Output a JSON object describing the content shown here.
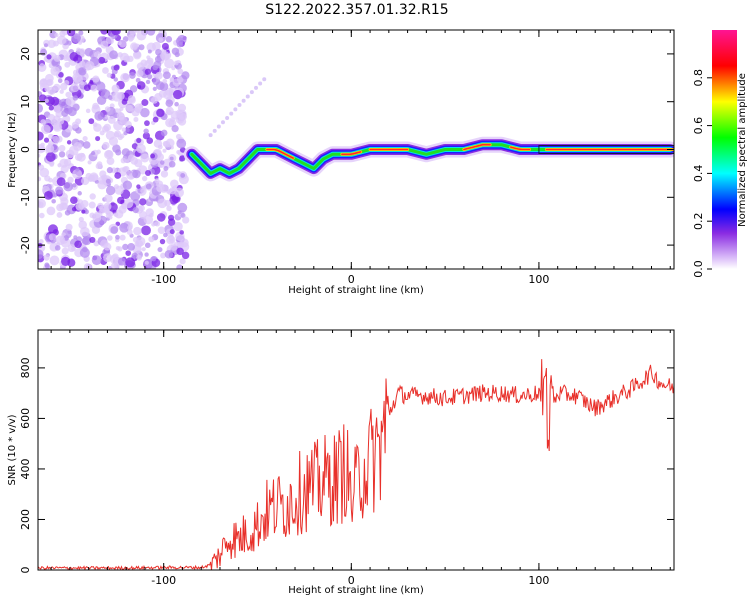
{
  "figure": {
    "title": "S122.2022.357.01.32.R15"
  },
  "chart_data": [
    {
      "type": "heatmap",
      "xlabel": "Height of straight line (km)",
      "ylabel": "Frequency (Hz)",
      "xlim": [
        -167,
        172
      ],
      "ylim": [
        -25,
        25
      ],
      "x_ticks": [
        "-100",
        "0",
        "100"
      ],
      "x_tick_values": [
        -100,
        0,
        100
      ],
      "y_ticks": [
        "-20",
        "-10",
        "0",
        "10",
        "20"
      ],
      "y_tick_values": [
        -20,
        -10,
        0,
        10,
        20
      ],
      "colorbar": {
        "label": "Normalized spectral amplitude",
        "range": [
          0,
          1
        ],
        "ticks": [
          "0.0",
          "0.2",
          "0.4",
          "0.6",
          "0.8"
        ],
        "tick_values": [
          0.0,
          0.2,
          0.4,
          0.6,
          0.8
        ],
        "colors": [
          "#ffffff",
          "#d8b8f8",
          "#8a2be2",
          "#0000ff",
          "#00ffff",
          "#00ff00",
          "#ffff00",
          "#ff0000",
          "#ff1493"
        ]
      },
      "ridge": {
        "x": [
          -85,
          -80,
          -75,
          -70,
          -65,
          -60,
          -55,
          -50,
          -45,
          -40,
          -35,
          -30,
          -25,
          -20,
          -15,
          -10,
          -5,
          0,
          10,
          20,
          30,
          40,
          50,
          60,
          70,
          80,
          90,
          95,
          100,
          110,
          130,
          150,
          170
        ],
        "y": [
          -1,
          -3,
          -5,
          -4,
          -5,
          -4,
          -2,
          0,
          0,
          0,
          -1,
          -2,
          -3,
          -4,
          -2,
          -1,
          -1,
          -1,
          0,
          0,
          0,
          -1,
          0,
          0,
          1,
          1,
          0,
          0,
          0,
          0,
          0,
          0,
          0
        ]
      }
    },
    {
      "type": "line",
      "xlabel": "Height of straight line (km)",
      "ylabel": "SNR (10 * v/v)",
      "xlim": [
        -167,
        172
      ],
      "ylim": [
        0,
        950
      ],
      "x_ticks": [
        "-100",
        "0",
        "100"
      ],
      "x_tick_values": [
        -100,
        0,
        100
      ],
      "y_ticks": [
        "0",
        "200",
        "400",
        "600",
        "800"
      ],
      "y_tick_values": [
        0,
        200,
        400,
        600,
        800
      ],
      "series": [
        {
          "color": "#e8302a",
          "x": [
            -167,
            -150,
            -120,
            -100,
            -90,
            -80,
            -75,
            -70,
            -65,
            -60,
            -55,
            -50,
            -45,
            -40,
            -35,
            -30,
            -25,
            -20,
            -15,
            -10,
            -5,
            -3,
            0,
            5,
            10,
            15,
            20,
            25,
            30,
            40,
            50,
            60,
            70,
            80,
            90,
            100,
            103,
            105,
            110,
            120,
            130,
            140,
            150,
            160,
            165,
            172
          ],
          "y": [
            8,
            8,
            8,
            10,
            10,
            10,
            20,
            60,
            130,
            120,
            150,
            180,
            230,
            250,
            260,
            290,
            320,
            330,
            350,
            360,
            380,
            420,
            270,
            390,
            430,
            480,
            620,
            700,
            690,
            690,
            680,
            690,
            700,
            700,
            690,
            700,
            750,
            600,
            700,
            690,
            640,
            680,
            720,
            780,
            740,
            720
          ]
        }
      ]
    }
  ]
}
